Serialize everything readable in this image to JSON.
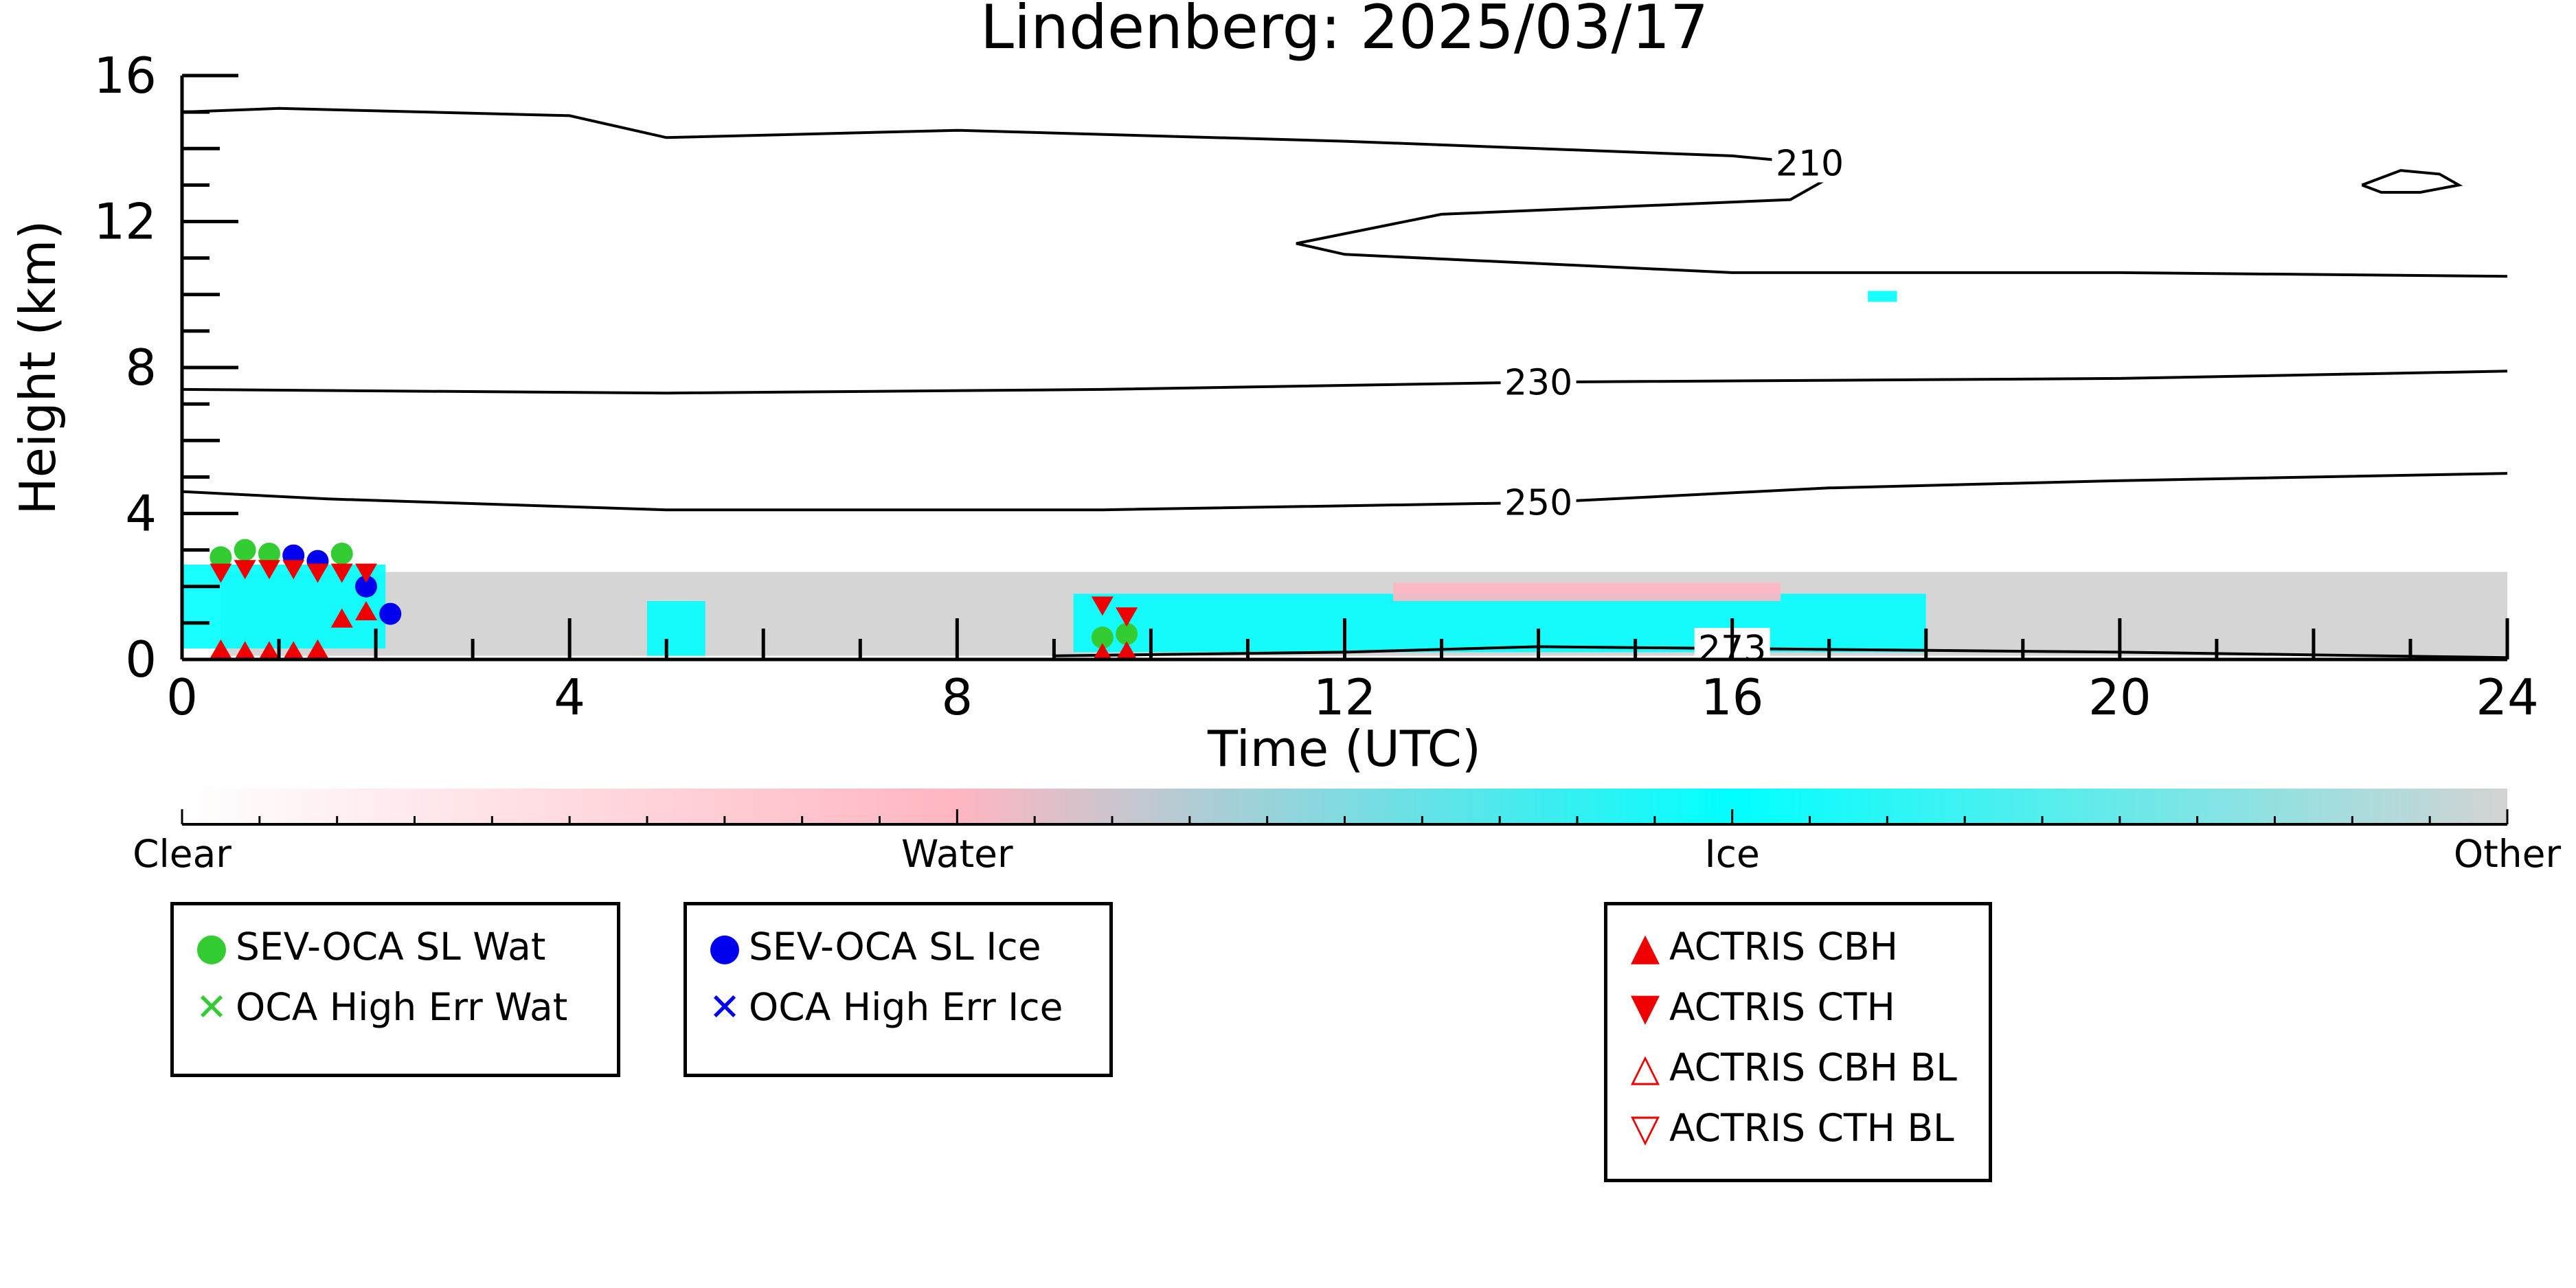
{
  "chart_data": {
    "type": "heatmap",
    "title": "Lindenberg: 2025/03/17",
    "xlabel": "Time (UTC)",
    "ylabel": "Height (km)",
    "xlim": [
      0,
      24
    ],
    "ylim": [
      0,
      16
    ],
    "x_ticks": [
      "0",
      "4",
      "8",
      "12",
      "16",
      "20",
      "24"
    ],
    "y_ticks": [
      "0",
      "4",
      "8",
      "12",
      "16"
    ],
    "colorbar": {
      "labels": [
        "Clear",
        "Water",
        "Ice",
        "Other"
      ],
      "colors": [
        "#ffffff",
        "#ffb6c1",
        "#00ffff",
        "#d3d3d3"
      ]
    },
    "contours": [
      {
        "label": "210",
        "points": [
          [
            0,
            15.0
          ],
          [
            1,
            15.1
          ],
          [
            4,
            14.9
          ],
          [
            5,
            14.3
          ],
          [
            8,
            14.5
          ],
          [
            12,
            14.2
          ],
          [
            14,
            14.0
          ],
          [
            16,
            13.8
          ],
          [
            16.8,
            13.6
          ],
          [
            17,
            13.2
          ],
          [
            16.6,
            12.6
          ],
          [
            13,
            12.2
          ],
          [
            11.5,
            11.4
          ],
          [
            12,
            11.1
          ],
          [
            16,
            10.6
          ],
          [
            20,
            10.6
          ],
          [
            24,
            10.5
          ]
        ]
      },
      {
        "label": "",
        "closed": true,
        "points": [
          [
            22.5,
            13.0
          ],
          [
            22.9,
            13.4
          ],
          [
            23.3,
            13.3
          ],
          [
            23.5,
            13.0
          ],
          [
            23.1,
            12.8
          ],
          [
            22.7,
            12.8
          ],
          [
            22.5,
            13.0
          ]
        ]
      },
      {
        "label": "230",
        "points": [
          [
            0,
            7.4
          ],
          [
            5,
            7.3
          ],
          [
            9.5,
            7.4
          ],
          [
            14,
            7.6
          ],
          [
            20,
            7.7
          ],
          [
            24,
            7.9
          ]
        ]
      },
      {
        "label": "250",
        "points": [
          [
            0,
            4.6
          ],
          [
            1.5,
            4.4
          ],
          [
            5,
            4.1
          ],
          [
            9.5,
            4.1
          ],
          [
            14,
            4.3
          ],
          [
            17,
            4.7
          ],
          [
            20,
            4.9
          ],
          [
            24,
            5.1
          ]
        ]
      },
      {
        "label": "273",
        "points": [
          [
            9,
            0.1
          ],
          [
            12,
            0.2
          ],
          [
            14,
            0.35
          ],
          [
            16,
            0.3
          ],
          [
            20,
            0.2
          ],
          [
            24,
            0.05
          ]
        ]
      }
    ],
    "cloud_regions": [
      {
        "class": "Other",
        "x": [
          0.4,
          24
        ],
        "y": [
          0.1,
          2.4
        ]
      },
      {
        "class": "Ice",
        "x": [
          0,
          2.1
        ],
        "y": [
          0.3,
          2.6
        ]
      },
      {
        "class": "Ice",
        "x": [
          4.8,
          5.4
        ],
        "y": [
          0.1,
          1.6
        ]
      },
      {
        "class": "Ice",
        "x": [
          9.2,
          18
        ],
        "y": [
          0.2,
          1.8
        ]
      },
      {
        "class": "Water",
        "x": [
          12.5,
          16.5
        ],
        "y": [
          1.6,
          2.1
        ]
      },
      {
        "class": "Ice",
        "x": [
          17.4,
          17.7
        ],
        "y": [
          9.8,
          10.1
        ]
      }
    ],
    "series": [
      {
        "name": "SEV-OCA SL Wat",
        "color": "#33cc33",
        "marker": "circle",
        "x": [
          0.4,
          0.65,
          0.9,
          1.65,
          9.5,
          9.75
        ],
        "y": [
          2.8,
          3.0,
          2.9,
          2.9,
          0.6,
          0.7
        ]
      },
      {
        "name": "OCA High Err Wat",
        "color": "#33cc33",
        "marker": "x",
        "x": [],
        "y": []
      },
      {
        "name": "SEV-OCA SL Ice",
        "color": "#0000ee",
        "marker": "circle",
        "x": [
          1.15,
          1.4,
          1.9,
          2.15
        ],
        "y": [
          2.85,
          2.7,
          2.0,
          1.25
        ]
      },
      {
        "name": "OCA High Err Ice",
        "color": "#0000ee",
        "marker": "x",
        "x": [],
        "y": []
      },
      {
        "name": "ACTRIS CBH",
        "color": "#ee0000",
        "marker": "triangle-up",
        "x": [
          0.4,
          0.65,
          0.9,
          1.15,
          1.4,
          1.65,
          1.9,
          9.5,
          9.75
        ],
        "y": [
          0.25,
          0.2,
          0.2,
          0.2,
          0.25,
          1.1,
          1.3,
          0.15,
          0.2
        ]
      },
      {
        "name": "ACTRIS CTH",
        "color": "#ee0000",
        "marker": "triangle-down",
        "x": [
          0.4,
          0.65,
          0.9,
          1.15,
          1.4,
          1.65,
          1.9,
          9.5,
          9.75
        ],
        "y": [
          2.4,
          2.5,
          2.5,
          2.5,
          2.4,
          2.4,
          2.4,
          1.5,
          1.2
        ]
      },
      {
        "name": "ACTRIS CBH BL",
        "color": "#ee0000",
        "marker": "triangle-up-open",
        "x": [],
        "y": []
      },
      {
        "name": "ACTRIS CTH BL",
        "color": "#ee0000",
        "marker": "triangle-down-open",
        "x": [],
        "y": []
      }
    ],
    "legends": [
      {
        "entries": [
          {
            "label": "SEV-OCA SL Wat",
            "symbol": "●",
            "color": "#33cc33"
          },
          {
            "label": "OCA High Err Wat",
            "symbol": "✕",
            "color": "#33cc33"
          }
        ]
      },
      {
        "entries": [
          {
            "label": "SEV-OCA SL Ice",
            "symbol": "●",
            "color": "#0000ee"
          },
          {
            "label": "OCA High Err Ice",
            "symbol": "✕",
            "color": "#0000ee"
          }
        ]
      },
      {
        "entries": [
          {
            "label": "ACTRIS CBH",
            "symbol": "▲",
            "color": "#ee0000"
          },
          {
            "label": "ACTRIS CTH",
            "symbol": "▼",
            "color": "#ee0000"
          },
          {
            "label": "ACTRIS CBH BL",
            "symbol": "△",
            "color": "#ee0000"
          },
          {
            "label": "ACTRIS CTH BL",
            "symbol": "▽",
            "color": "#ee0000"
          }
        ]
      }
    ]
  }
}
